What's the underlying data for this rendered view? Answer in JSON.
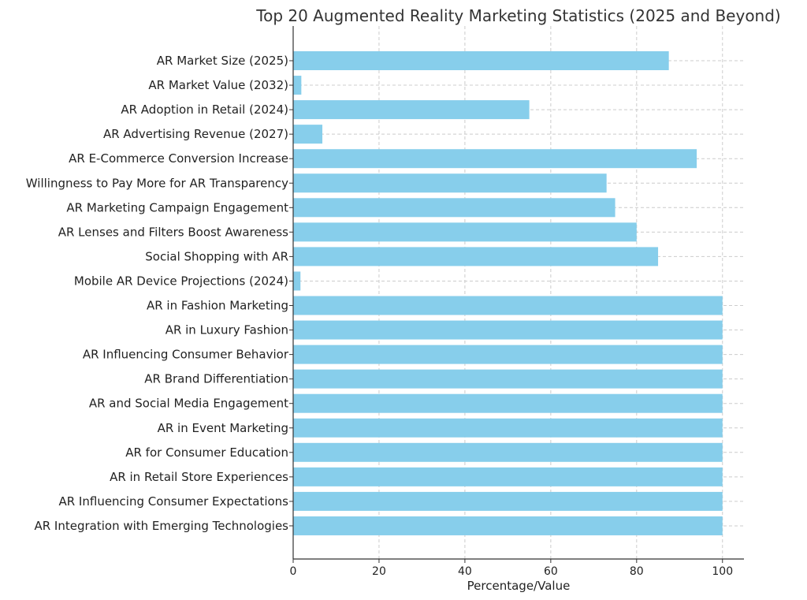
{
  "chart_data": {
    "type": "bar",
    "orientation": "horizontal",
    "title": "Top 20 Augmented Reality Marketing Statistics (2025 and Beyond)",
    "xlabel": "Percentage/Value",
    "ylabel": "",
    "xlim": [
      0,
      105
    ],
    "xticks": [
      "0",
      "20",
      "40",
      "60",
      "80",
      "100"
    ],
    "xtick_values": [
      0,
      20,
      40,
      60,
      80,
      100
    ],
    "grid": true,
    "bar_color": "#87CEEB",
    "categories": [
      "AR Market Size (2025)",
      "AR Market Value (2032)",
      "AR Adoption in Retail (2024)",
      "AR Advertising Revenue (2027)",
      "AR E-Commerce Conversion Increase",
      "Willingness to Pay More for AR Transparency",
      "AR Marketing Campaign Engagement",
      "AR Lenses and Filters Boost Awareness",
      "Social Shopping with AR",
      "Mobile AR Device Projections (2024)",
      "AR in Fashion Marketing",
      "AR in Luxury Fashion",
      "AR Influencing Consumer Behavior",
      "AR Brand Differentiation",
      "AR and Social Media Engagement",
      "AR in Event Marketing",
      "AR for Consumer Education",
      "AR in Retail Store Experiences",
      "AR Influencing Consumer Expectations",
      "AR Integration with Emerging Technologies"
    ],
    "values": [
      87.5,
      1.9,
      55,
      6.8,
      94,
      73,
      75,
      80,
      85,
      1.7,
      100,
      100,
      100,
      100,
      100,
      100,
      100,
      100,
      100,
      100
    ]
  }
}
